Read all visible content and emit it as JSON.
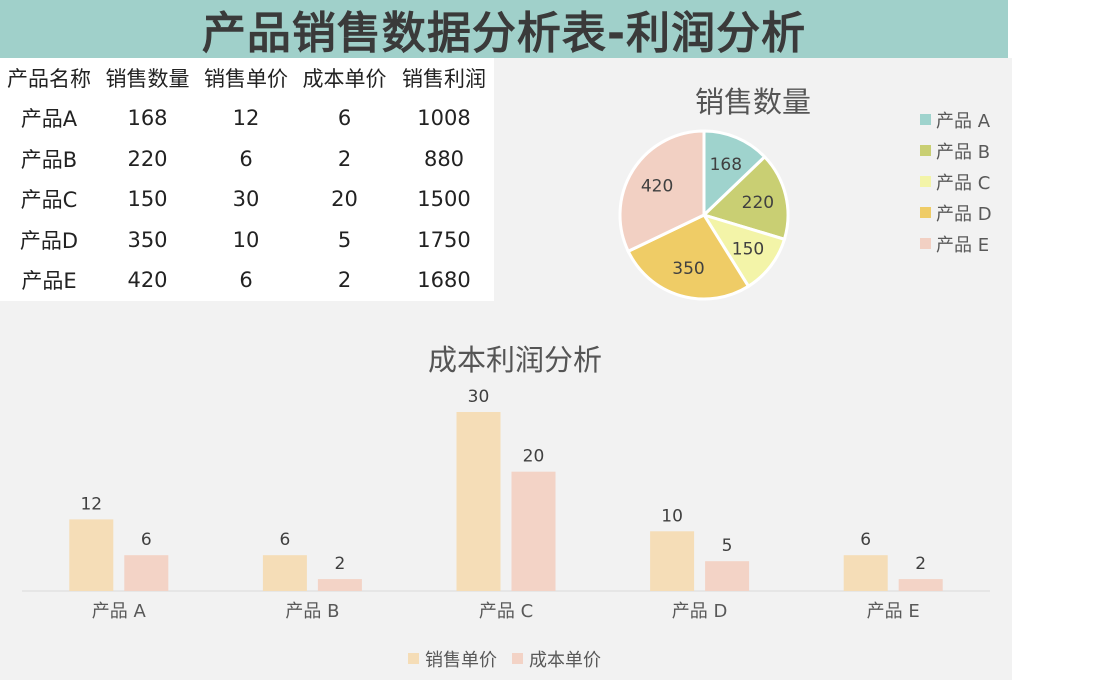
{
  "title": "产品销售数据分析表-利润分析",
  "table": {
    "headers": [
      "产品名称",
      "销售数量",
      "销售单价",
      "成本单价",
      "销售利润"
    ],
    "rows": [
      [
        "产品A",
        "168",
        "12",
        "6",
        "1008"
      ],
      [
        "产品B",
        "220",
        "6",
        "2",
        "880"
      ],
      [
        "产品C",
        "150",
        "30",
        "20",
        "1500"
      ],
      [
        "产品D",
        "350",
        "10",
        "5",
        "1750"
      ],
      [
        "产品E",
        "420",
        "6",
        "2",
        "1680"
      ]
    ]
  },
  "chart_data": [
    {
      "type": "pie",
      "title": "销售数量",
      "categories": [
        "产品 A",
        "产品 B",
        "产品 C",
        "产品 D",
        "产品 E"
      ],
      "values": [
        168,
        220,
        150,
        350,
        420
      ],
      "colors": [
        "#9fd3cd",
        "#c9cf73",
        "#f3f4a8",
        "#efcc66",
        "#f2d0c3"
      ],
      "legend": "right"
    },
    {
      "type": "bar",
      "title": "成本利润分析",
      "categories": [
        "产品 A",
        "产品 B",
        "产品 C",
        "产品 D",
        "产品 E"
      ],
      "series": [
        {
          "name": "销售单价",
          "values": [
            12,
            6,
            30,
            10,
            6
          ],
          "color": "#f5ddb7"
        },
        {
          "name": "成本单价",
          "values": [
            6,
            2,
            20,
            5,
            2
          ],
          "color": "#f3d3c6"
        }
      ],
      "ylim": [
        0,
        30
      ],
      "grid": false,
      "legend": "bottom"
    }
  ]
}
